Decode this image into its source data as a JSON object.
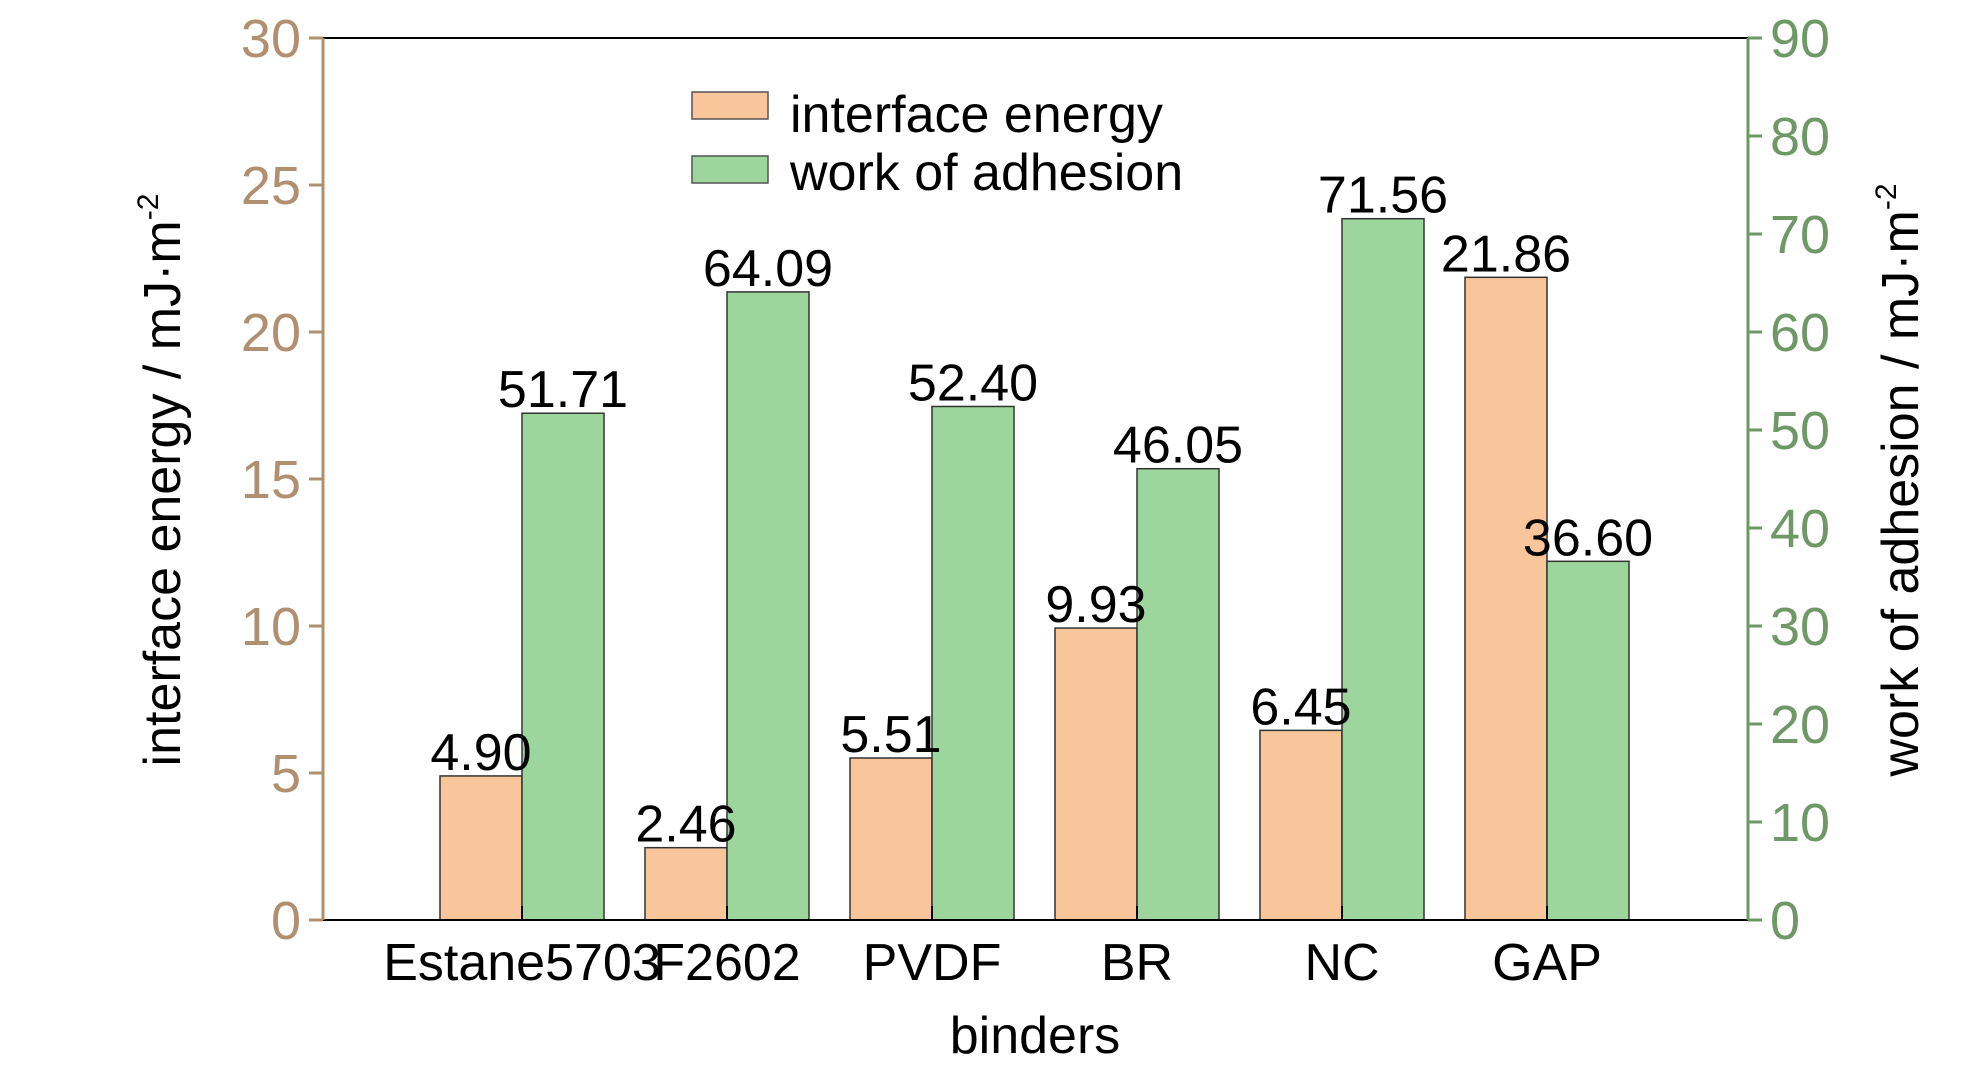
{
  "chart_data": {
    "type": "bar",
    "categories": [
      "Estane5703",
      "F2602",
      "PVDF",
      "BR",
      "NC",
      "GAP"
    ],
    "series": [
      {
        "name": "interface energy",
        "axis": "left",
        "values": [
          4.9,
          2.46,
          5.51,
          9.93,
          6.45,
          21.86
        ],
        "labels": [
          "4.90",
          "2.46",
          "5.51",
          "9.93",
          "6.45",
          "21.86"
        ],
        "color": "#F9C59A"
      },
      {
        "name": "work of adhesion",
        "axis": "right",
        "values": [
          51.71,
          64.09,
          52.4,
          46.05,
          71.56,
          36.6
        ],
        "labels": [
          "51.71",
          "64.09",
          "52.40",
          "46.05",
          "71.56",
          "36.60"
        ],
        "color": "#9DD69C"
      }
    ],
    "xlabel": "binders",
    "ylabel_left": "interface energy / mJ·m",
    "ylabel_left_sup": "-2",
    "ylabel_right": "work of adhesion / mJ·m",
    "ylabel_right_sup": "-2",
    "ylim_left": [
      0,
      30
    ],
    "yticks_left": [
      "0",
      "5",
      "10",
      "15",
      "20",
      "25",
      "30"
    ],
    "ylim_right": [
      0,
      90
    ],
    "yticks_right": [
      "0",
      "10",
      "20",
      "30",
      "40",
      "50",
      "60",
      "70",
      "80",
      "90"
    ],
    "left_axis_color": "#B09070",
    "right_axis_color": "#6E9866",
    "grid": false,
    "legend_position": "top-center"
  }
}
